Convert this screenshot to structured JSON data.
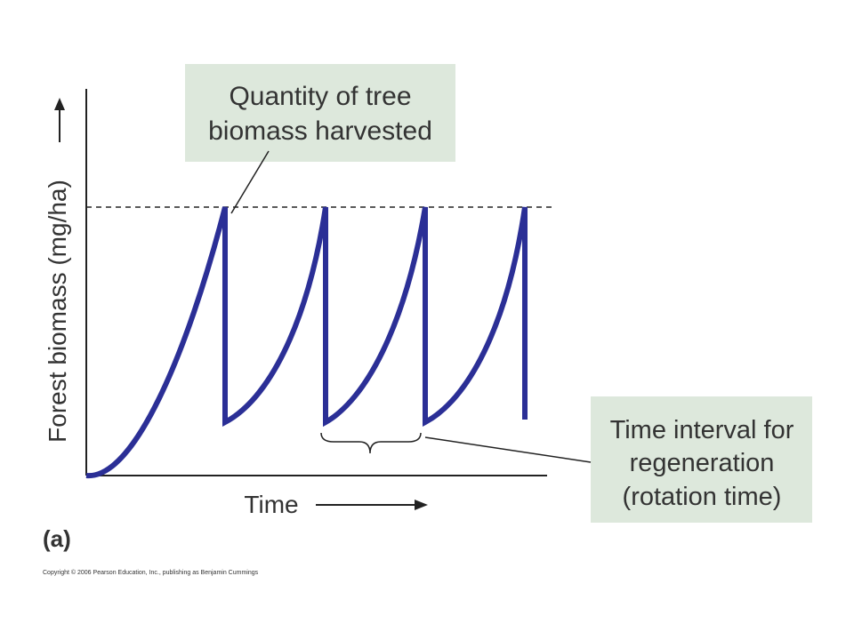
{
  "y_axis_label": "Forest biomass (mg/ha)",
  "x_axis_label": "Time",
  "annotations": [
    {
      "lines": [
        "Quantity of tree",
        "biomass harvested"
      ]
    },
    {
      "lines": [
        "Time interval for",
        "regeneration",
        "(rotation time)"
      ]
    }
  ],
  "panel_label": "(a)",
  "copyright": "Copyright © 2006 Pearson Education, Inc., publishing as Benjamin Cummings"
}
